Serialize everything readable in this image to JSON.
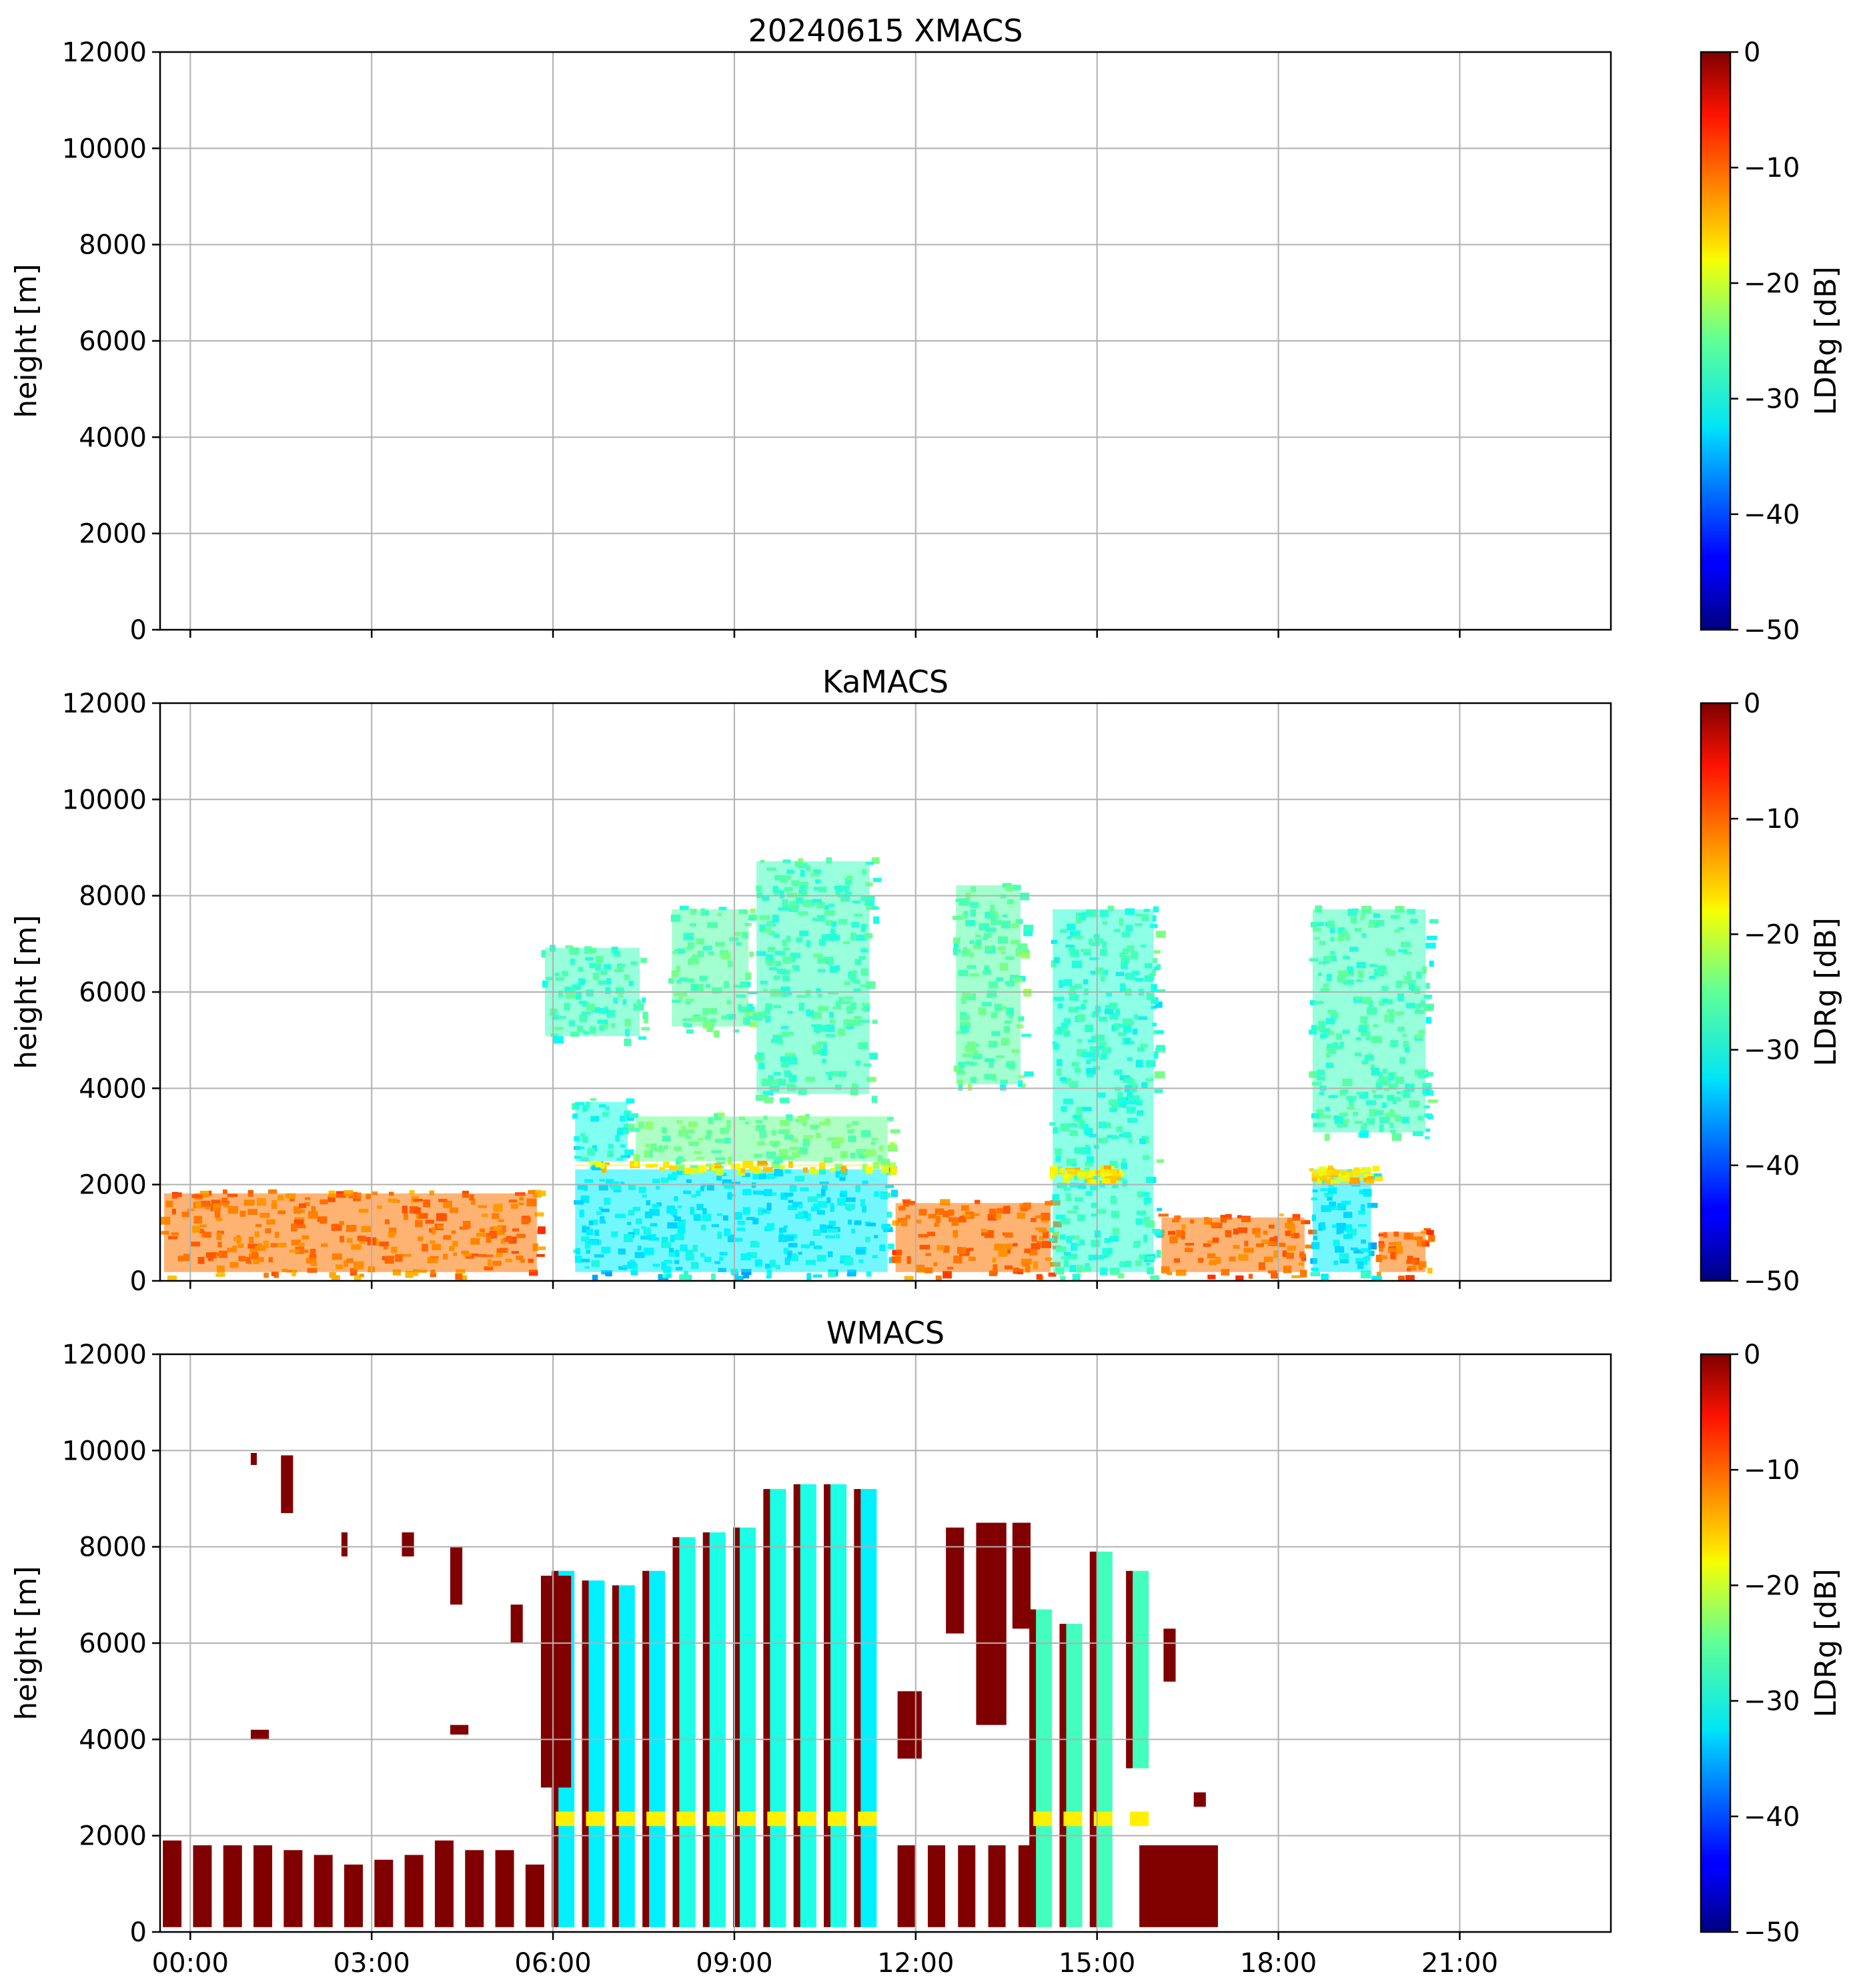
{
  "chart_data": [
    {
      "type": "heatmap",
      "title": "20240615 XMACS",
      "ylabel": "height [m]",
      "ylim": [
        0,
        12000
      ],
      "yticks": [
        "0",
        "2000",
        "4000",
        "6000",
        "8000",
        "10000",
        "12000"
      ],
      "xlim_hours": [
        -0.5,
        23.5
      ],
      "grid": true,
      "colorbar": {
        "label": "LDRg [dB]",
        "range": [
          -50,
          0
        ],
        "ticks": [
          "0",
          "−10",
          "−20",
          "−30",
          "−40",
          "−50"
        ],
        "colormap": "jet"
      },
      "echo_regions": []
    },
    {
      "type": "heatmap",
      "title": "KaMACS",
      "ylabel": "height [m]",
      "ylim": [
        0,
        12000
      ],
      "yticks": [
        "0",
        "2000",
        "4000",
        "6000",
        "8000",
        "10000",
        "12000"
      ],
      "xlim_hours": [
        -0.5,
        23.5
      ],
      "grid": true,
      "colorbar": {
        "label": "LDRg [dB]",
        "range": [
          -50,
          0
        ],
        "ticks": [
          "0",
          "−10",
          "−20",
          "−30",
          "−40",
          "−50"
        ],
        "colormap": "jet"
      },
      "echo_regions": [
        {
          "t0": -0.5,
          "t1": 5.8,
          "h0": 100,
          "h1": 1900,
          "ldr": -12
        },
        {
          "t0": 6.3,
          "t1": 11.6,
          "h0": 100,
          "h1": 2400,
          "ldr": -32
        },
        {
          "t0": 7.3,
          "t1": 11.6,
          "h0": 2400,
          "h1": 3500,
          "ldr": -26
        },
        {
          "t0": 6.3,
          "t1": 7.3,
          "h0": 2400,
          "h1": 3800,
          "ldr": -30
        },
        {
          "t0": 6.3,
          "t1": 11.6,
          "h0": 2300,
          "h1": 2500,
          "ldr": -18
        },
        {
          "t0": 5.8,
          "t1": 7.5,
          "h0": 5000,
          "h1": 7000,
          "ldr": -28
        },
        {
          "t0": 7.9,
          "t1": 9.3,
          "h0": 5200,
          "h1": 7800,
          "ldr": -27
        },
        {
          "t0": 9.3,
          "t1": 11.3,
          "h0": 3800,
          "h1": 8800,
          "ldr": -28
        },
        {
          "t0": 11.6,
          "t1": 14.3,
          "h0": 100,
          "h1": 1700,
          "ldr": -12
        },
        {
          "t0": 12.6,
          "t1": 13.8,
          "h0": 4000,
          "h1": 8300,
          "ldr": -27
        },
        {
          "t0": 14.2,
          "t1": 16.0,
          "h0": 100,
          "h1": 7800,
          "ldr": -29
        },
        {
          "t0": 14.2,
          "t1": 15.4,
          "h0": 2100,
          "h1": 2400,
          "ldr": -18
        },
        {
          "t0": 16.0,
          "t1": 18.5,
          "h0": 100,
          "h1": 1400,
          "ldr": -12
        },
        {
          "t0": 18.5,
          "t1": 19.6,
          "h0": 100,
          "h1": 2400,
          "ldr": -32
        },
        {
          "t0": 18.5,
          "t1": 20.5,
          "h0": 3000,
          "h1": 7800,
          "ldr": -28
        },
        {
          "t0": 18.5,
          "t1": 19.6,
          "h0": 2100,
          "h1": 2400,
          "ldr": -18
        },
        {
          "t0": 19.6,
          "t1": 20.5,
          "h0": 100,
          "h1": 1100,
          "ldr": -12
        }
      ]
    },
    {
      "type": "heatmap",
      "title": "WMACS",
      "ylabel": "height [m]",
      "ylim": [
        0,
        12000
      ],
      "yticks": [
        "0",
        "2000",
        "4000",
        "6000",
        "8000",
        "10000",
        "12000"
      ],
      "xlim_hours": [
        -0.5,
        23.5
      ],
      "xticks": [
        "00:00",
        "03:00",
        "06:00",
        "09:00",
        "12:00",
        "15:00",
        "18:00",
        "21:00"
      ],
      "xtick_hours": [
        0,
        3,
        6,
        9,
        12,
        15,
        18,
        21
      ],
      "grid": true,
      "colorbar": {
        "label": "LDRg [dB]",
        "range": [
          -50,
          0
        ],
        "ticks": [
          "0",
          "−10",
          "−20",
          "−30",
          "−40",
          "−50"
        ],
        "colormap": "jet"
      },
      "column_times": [
        -0.3,
        0.2,
        0.7,
        1.2,
        1.7,
        2.2,
        2.7,
        3.2,
        3.7,
        4.2,
        4.7,
        5.2,
        5.7
      ],
      "column_top": [
        1900,
        1800,
        1800,
        1800,
        1700,
        1600,
        1400,
        1500,
        1600,
        1900,
        1700,
        1700,
        1400
      ],
      "column_ldr": 0,
      "cloud_columns": [
        {
          "t": 6.2,
          "h0": 100,
          "h1": 7500,
          "ldr": -32
        },
        {
          "t": 6.7,
          "h0": 100,
          "h1": 7300,
          "ldr": -32
        },
        {
          "t": 7.2,
          "h0": 100,
          "h1": 7200,
          "ldr": -32
        },
        {
          "t": 7.7,
          "h0": 100,
          "h1": 7500,
          "ldr": -32
        },
        {
          "t": 8.2,
          "h0": 100,
          "h1": 8200,
          "ldr": -30
        },
        {
          "t": 8.7,
          "h0": 100,
          "h1": 8300,
          "ldr": -30
        },
        {
          "t": 9.2,
          "h0": 100,
          "h1": 8400,
          "ldr": -30
        },
        {
          "t": 9.7,
          "h0": 100,
          "h1": 9200,
          "ldr": -30
        },
        {
          "t": 10.2,
          "h0": 100,
          "h1": 9300,
          "ldr": -30
        },
        {
          "t": 10.7,
          "h0": 100,
          "h1": 9300,
          "ldr": -30
        },
        {
          "t": 11.2,
          "h0": 100,
          "h1": 9200,
          "ldr": -32
        },
        {
          "t": 14.1,
          "h0": 100,
          "h1": 6700,
          "ldr": -28
        },
        {
          "t": 14.6,
          "h0": 100,
          "h1": 6400,
          "ldr": -28
        },
        {
          "t": 15.1,
          "h0": 100,
          "h1": 7900,
          "ldr": -28
        },
        {
          "t": 15.7,
          "h0": 3400,
          "h1": 7500,
          "ldr": -28
        }
      ],
      "maroon_patches": [
        {
          "t0": 1.0,
          "t1": 1.1,
          "h0": 9700,
          "h1": 9950
        },
        {
          "t0": 1.5,
          "t1": 1.7,
          "h0": 8700,
          "h1": 9900
        },
        {
          "t0": 2.5,
          "t1": 2.6,
          "h0": 7800,
          "h1": 8300
        },
        {
          "t0": 3.5,
          "t1": 3.7,
          "h0": 7800,
          "h1": 8300
        },
        {
          "t0": 4.3,
          "t1": 4.5,
          "h0": 6800,
          "h1": 8000
        },
        {
          "t0": 5.3,
          "t1": 5.5,
          "h0": 6000,
          "h1": 6800
        },
        {
          "t0": 1.0,
          "t1": 1.3,
          "h0": 4000,
          "h1": 4200
        },
        {
          "t0": 4.3,
          "t1": 4.6,
          "h0": 4100,
          "h1": 4300
        },
        {
          "t0": 5.8,
          "t1": 6.3,
          "h0": 3000,
          "h1": 7400
        },
        {
          "t0": 11.7,
          "t1": 12.1,
          "h0": 3600,
          "h1": 5000
        },
        {
          "t0": 12.5,
          "t1": 12.8,
          "h0": 6200,
          "h1": 8400
        },
        {
          "t0": 13.0,
          "t1": 13.5,
          "h0": 4300,
          "h1": 8500
        },
        {
          "t0": 13.6,
          "t1": 13.9,
          "h0": 6300,
          "h1": 8500
        },
        {
          "t0": 16.1,
          "t1": 16.3,
          "h0": 5200,
          "h1": 6300
        },
        {
          "t0": 16.6,
          "t1": 16.8,
          "h0": 2600,
          "h1": 2900
        },
        {
          "t0": 15.7,
          "t1": 17.0,
          "h0": 100,
          "h1": 1800
        }
      ],
      "low_columns_afternoon": [
        {
          "t0": 11.7,
          "t1": 14.0,
          "h0": 100,
          "h1": 1800
        }
      ]
    }
  ]
}
